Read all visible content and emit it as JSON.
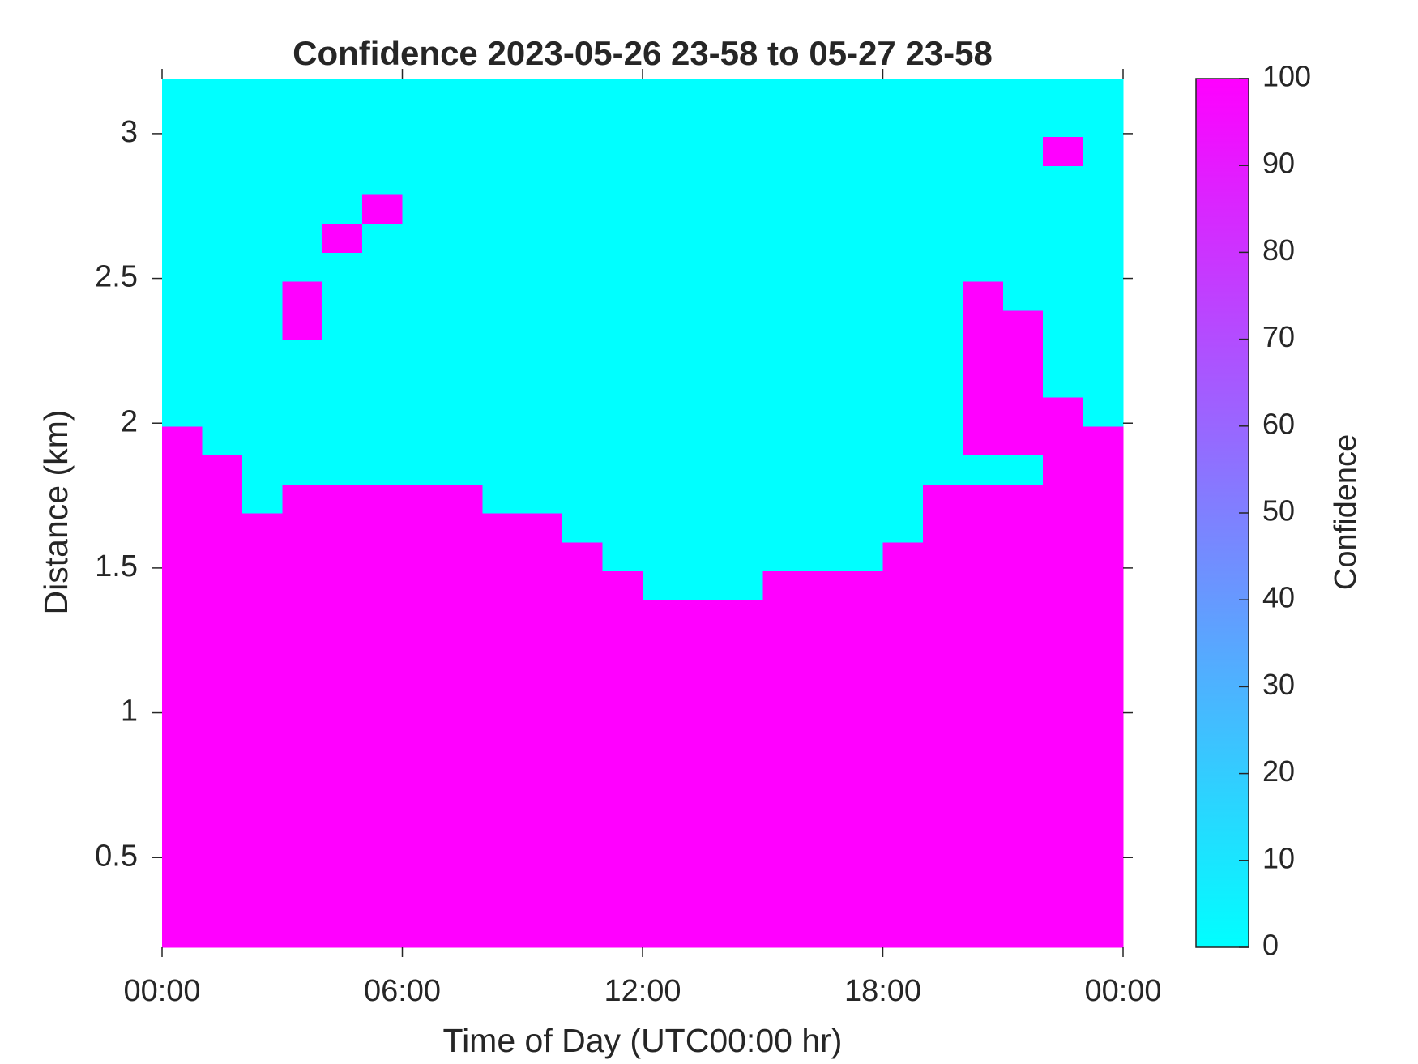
{
  "chart_data": {
    "type": "heatmap",
    "title": "Confidence 2023-05-26 23-58 to 05-27 23-58",
    "x_label": "Time of Day (UTC00:00 hr)",
    "y_label": "Distance (km)",
    "colorbar_label": "Confidence",
    "xlim": [
      0,
      24
    ],
    "xticks": [
      {
        "value": 0,
        "label": "00:00"
      },
      {
        "value": 6,
        "label": "06:00"
      },
      {
        "value": 12,
        "label": "12:00"
      },
      {
        "value": 18,
        "label": "18:00"
      },
      {
        "value": 24,
        "label": "00:00"
      }
    ],
    "ylim": [
      0.19,
      3.19
    ],
    "yticks": [
      0.5,
      1,
      1.5,
      2,
      2.5,
      3
    ],
    "clim": [
      0,
      100
    ],
    "cticks": [
      0,
      10,
      20,
      30,
      40,
      50,
      60,
      70,
      80,
      90,
      100
    ],
    "colormap": [
      "#00ffff",
      "#ff00ff"
    ],
    "z": [
      [
        100,
        100,
        100,
        100,
        100,
        100,
        100,
        100,
        100,
        100,
        100,
        100,
        100,
        100,
        100,
        100,
        100,
        100,
        100,
        100,
        100,
        100,
        100,
        100
      ],
      [
        100,
        100,
        100,
        100,
        100,
        100,
        100,
        100,
        100,
        100,
        100,
        100,
        100,
        100,
        100,
        100,
        100,
        100,
        100,
        100,
        100,
        100,
        100,
        100
      ],
      [
        100,
        100,
        100,
        100,
        100,
        100,
        100,
        100,
        100,
        100,
        100,
        100,
        100,
        100,
        100,
        100,
        100,
        100,
        100,
        100,
        100,
        100,
        100,
        100
      ],
      [
        100,
        100,
        100,
        100,
        100,
        100,
        100,
        100,
        100,
        100,
        100,
        100,
        100,
        100,
        100,
        100,
        100,
        100,
        100,
        100,
        100,
        100,
        100,
        100
      ],
      [
        100,
        100,
        100,
        100,
        100,
        100,
        100,
        100,
        100,
        100,
        100,
        100,
        100,
        100,
        100,
        100,
        100,
        100,
        100,
        100,
        100,
        100,
        100,
        100
      ],
      [
        100,
        100,
        100,
        100,
        100,
        100,
        100,
        100,
        100,
        100,
        100,
        100,
        100,
        100,
        100,
        100,
        100,
        100,
        100,
        100,
        100,
        100,
        100,
        100
      ],
      [
        100,
        100,
        100,
        100,
        100,
        100,
        100,
        100,
        100,
        100,
        100,
        100,
        100,
        100,
        100,
        100,
        100,
        100,
        100,
        100,
        100,
        100,
        100,
        100
      ],
      [
        100,
        100,
        100,
        100,
        100,
        100,
        100,
        100,
        100,
        100,
        100,
        100,
        100,
        100,
        100,
        100,
        100,
        100,
        100,
        100,
        100,
        100,
        100,
        100
      ],
      [
        100,
        100,
        100,
        100,
        100,
        100,
        100,
        100,
        100,
        100,
        100,
        100,
        100,
        100,
        100,
        100,
        100,
        100,
        100,
        100,
        100,
        100,
        100,
        100
      ],
      [
        100,
        100,
        100,
        100,
        100,
        100,
        100,
        100,
        100,
        100,
        100,
        100,
        100,
        100,
        100,
        100,
        100,
        100,
        100,
        100,
        100,
        100,
        100,
        100
      ],
      [
        100,
        100,
        100,
        100,
        100,
        100,
        100,
        100,
        100,
        100,
        100,
        100,
        100,
        100,
        100,
        100,
        100,
        100,
        100,
        100,
        100,
        100,
        100,
        100
      ],
      [
        100,
        100,
        100,
        100,
        100,
        100,
        100,
        100,
        100,
        100,
        100,
        100,
        100,
        100,
        100,
        100,
        100,
        100,
        100,
        100,
        100,
        100,
        100,
        100
      ],
      [
        100,
        100,
        100,
        100,
        100,
        100,
        100,
        100,
        100,
        100,
        100,
        100,
        0,
        0,
        0,
        100,
        100,
        100,
        100,
        100,
        100,
        100,
        100,
        100
      ],
      [
        100,
        100,
        100,
        100,
        100,
        100,
        100,
        100,
        100,
        100,
        100,
        0,
        0,
        0,
        0,
        0,
        0,
        0,
        100,
        100,
        100,
        100,
        100,
        100
      ],
      [
        100,
        100,
        100,
        100,
        100,
        100,
        100,
        100,
        100,
        100,
        0,
        0,
        0,
        0,
        0,
        0,
        0,
        0,
        0,
        100,
        100,
        100,
        100,
        100
      ],
      [
        100,
        100,
        0,
        100,
        100,
        100,
        100,
        100,
        0,
        0,
        0,
        0,
        0,
        0,
        0,
        0,
        0,
        0,
        0,
        100,
        100,
        100,
        100,
        100
      ],
      [
        100,
        100,
        0,
        0,
        0,
        0,
        0,
        0,
        0,
        0,
        0,
        0,
        0,
        0,
        0,
        0,
        0,
        0,
        0,
        0,
        0,
        0,
        100,
        100
      ],
      [
        100,
        0,
        0,
        0,
        0,
        0,
        0,
        0,
        0,
        0,
        0,
        0,
        0,
        0,
        0,
        0,
        0,
        0,
        0,
        0,
        100,
        100,
        100,
        100
      ],
      [
        0,
        0,
        0,
        0,
        0,
        0,
        0,
        0,
        0,
        0,
        0,
        0,
        0,
        0,
        0,
        0,
        0,
        0,
        0,
        0,
        100,
        100,
        100,
        0
      ],
      [
        0,
        0,
        0,
        0,
        0,
        0,
        0,
        0,
        0,
        0,
        0,
        0,
        0,
        0,
        0,
        0,
        0,
        0,
        0,
        0,
        100,
        100,
        0,
        0
      ],
      [
        0,
        0,
        0,
        0,
        0,
        0,
        0,
        0,
        0,
        0,
        0,
        0,
        0,
        0,
        0,
        0,
        0,
        0,
        0,
        0,
        100,
        100,
        0,
        0
      ],
      [
        0,
        0,
        0,
        100,
        0,
        0,
        0,
        0,
        0,
        0,
        0,
        0,
        0,
        0,
        0,
        0,
        0,
        0,
        0,
        0,
        100,
        100,
        0,
        0
      ],
      [
        0,
        0,
        0,
        100,
        0,
        0,
        0,
        0,
        0,
        0,
        0,
        0,
        0,
        0,
        0,
        0,
        0,
        0,
        0,
        0,
        100,
        0,
        0,
        0
      ],
      [
        0,
        0,
        0,
        0,
        0,
        0,
        0,
        0,
        0,
        0,
        0,
        0,
        0,
        0,
        0,
        0,
        0,
        0,
        0,
        0,
        0,
        0,
        0,
        0
      ],
      [
        0,
        0,
        0,
        0,
        100,
        0,
        0,
        0,
        0,
        0,
        0,
        0,
        0,
        0,
        0,
        0,
        0,
        0,
        0,
        0,
        0,
        0,
        0,
        0
      ],
      [
        0,
        0,
        0,
        0,
        0,
        100,
        0,
        0,
        0,
        0,
        0,
        0,
        0,
        0,
        0,
        0,
        0,
        0,
        0,
        0,
        0,
        0,
        0,
        0
      ],
      [
        0,
        0,
        0,
        0,
        0,
        0,
        0,
        0,
        0,
        0,
        0,
        0,
        0,
        0,
        0,
        0,
        0,
        0,
        0,
        0,
        0,
        0,
        0,
        0
      ],
      [
        0,
        0,
        0,
        0,
        0,
        0,
        0,
        0,
        0,
        0,
        0,
        0,
        0,
        0,
        0,
        0,
        0,
        0,
        0,
        0,
        0,
        0,
        100,
        0
      ],
      [
        0,
        0,
        0,
        0,
        0,
        0,
        0,
        0,
        0,
        0,
        0,
        0,
        0,
        0,
        0,
        0,
        0,
        0,
        0,
        0,
        0,
        0,
        0,
        0
      ],
      [
        0,
        0,
        0,
        0,
        0,
        0,
        0,
        0,
        0,
        0,
        0,
        0,
        0,
        0,
        0,
        0,
        0,
        0,
        0,
        0,
        0,
        0,
        0,
        0
      ]
    ]
  }
}
